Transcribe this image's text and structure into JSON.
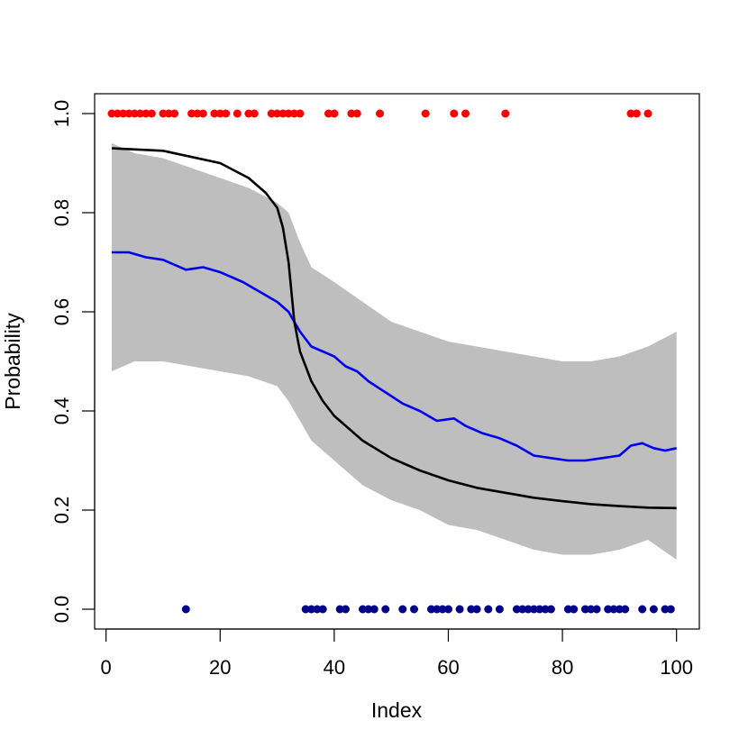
{
  "chart_data": {
    "type": "line",
    "xlabel": "Index",
    "ylabel": "Probability",
    "xlim": [
      -2,
      104
    ],
    "ylim": [
      -0.04,
      1.04
    ],
    "x_ticks": [
      0,
      20,
      40,
      60,
      80,
      100
    ],
    "x_tick_labels": [
      "0",
      "20",
      "40",
      "60",
      "80",
      "100"
    ],
    "y_ticks": [
      0.0,
      0.2,
      0.4,
      0.6,
      0.8,
      1.0
    ],
    "y_tick_labels": [
      "0.0",
      "0.2",
      "0.4",
      "0.6",
      "0.8",
      "1.0"
    ],
    "grid": false,
    "colors": {
      "band": "#bebebe",
      "mean": "#0000ee",
      "true": "#000000",
      "ones": "#ff0000",
      "zeros": "#00008b"
    },
    "band": {
      "x": [
        1,
        5,
        10,
        15,
        20,
        25,
        30,
        32,
        34,
        36,
        40,
        45,
        50,
        55,
        60,
        65,
        70,
        75,
        80,
        85,
        90,
        95,
        100
      ],
      "upper": [
        0.94,
        0.92,
        0.91,
        0.89,
        0.87,
        0.85,
        0.82,
        0.8,
        0.74,
        0.69,
        0.66,
        0.62,
        0.58,
        0.56,
        0.54,
        0.53,
        0.52,
        0.51,
        0.5,
        0.5,
        0.51,
        0.53,
        0.56
      ],
      "lower": [
        0.48,
        0.5,
        0.5,
        0.49,
        0.48,
        0.47,
        0.45,
        0.42,
        0.38,
        0.34,
        0.3,
        0.25,
        0.22,
        0.2,
        0.17,
        0.16,
        0.14,
        0.12,
        0.11,
        0.11,
        0.12,
        0.14,
        0.1
      ]
    },
    "series": [
      {
        "x": [
          1,
          4,
          7,
          10,
          14,
          17,
          20,
          24,
          27,
          30,
          32,
          34,
          36,
          38,
          40,
          42,
          44,
          46,
          48,
          50,
          52,
          55,
          58,
          61,
          63,
          66,
          69,
          72,
          75,
          78,
          81,
          84,
          87,
          90,
          92,
          94,
          96,
          98,
          100
        ],
        "y": [
          0.72,
          0.72,
          0.71,
          0.705,
          0.685,
          0.69,
          0.68,
          0.66,
          0.64,
          0.62,
          0.6,
          0.56,
          0.53,
          0.52,
          0.51,
          0.49,
          0.48,
          0.46,
          0.445,
          0.43,
          0.415,
          0.4,
          0.38,
          0.385,
          0.37,
          0.355,
          0.345,
          0.33,
          0.31,
          0.305,
          0.3,
          0.3,
          0.305,
          0.31,
          0.33,
          0.335,
          0.325,
          0.32,
          0.325
        ]
      },
      {
        "x": [
          1,
          10,
          20,
          25,
          28,
          30,
          31,
          32,
          33,
          34,
          35,
          36,
          38,
          40,
          45,
          50,
          55,
          60,
          65,
          70,
          75,
          80,
          85,
          90,
          95,
          100
        ],
        "y": [
          0.93,
          0.925,
          0.9,
          0.87,
          0.84,
          0.81,
          0.77,
          0.7,
          0.58,
          0.52,
          0.49,
          0.46,
          0.42,
          0.39,
          0.34,
          0.305,
          0.28,
          0.26,
          0.245,
          0.235,
          0.225,
          0.218,
          0.212,
          0.208,
          0.205,
          0.204
        ]
      }
    ],
    "points_ones_x": [
      1,
      2,
      3,
      4,
      5,
      6,
      7,
      8,
      10,
      11,
      12,
      15,
      16,
      17,
      19,
      20,
      21,
      23,
      25,
      26,
      29,
      30,
      31,
      32,
      33,
      34,
      39,
      40,
      43,
      44,
      48,
      56,
      61,
      63,
      70,
      92,
      93,
      95
    ],
    "points_zeros_x": [
      14,
      35,
      36,
      37,
      38,
      41,
      42,
      45,
      46,
      47,
      49,
      52,
      54,
      57,
      58,
      59,
      60,
      62,
      64,
      65,
      67,
      69,
      72,
      73,
      74,
      75,
      76,
      77,
      78,
      81,
      82,
      84,
      85,
      86,
      88,
      89,
      90,
      91,
      94,
      96,
      98,
      99
    ]
  }
}
